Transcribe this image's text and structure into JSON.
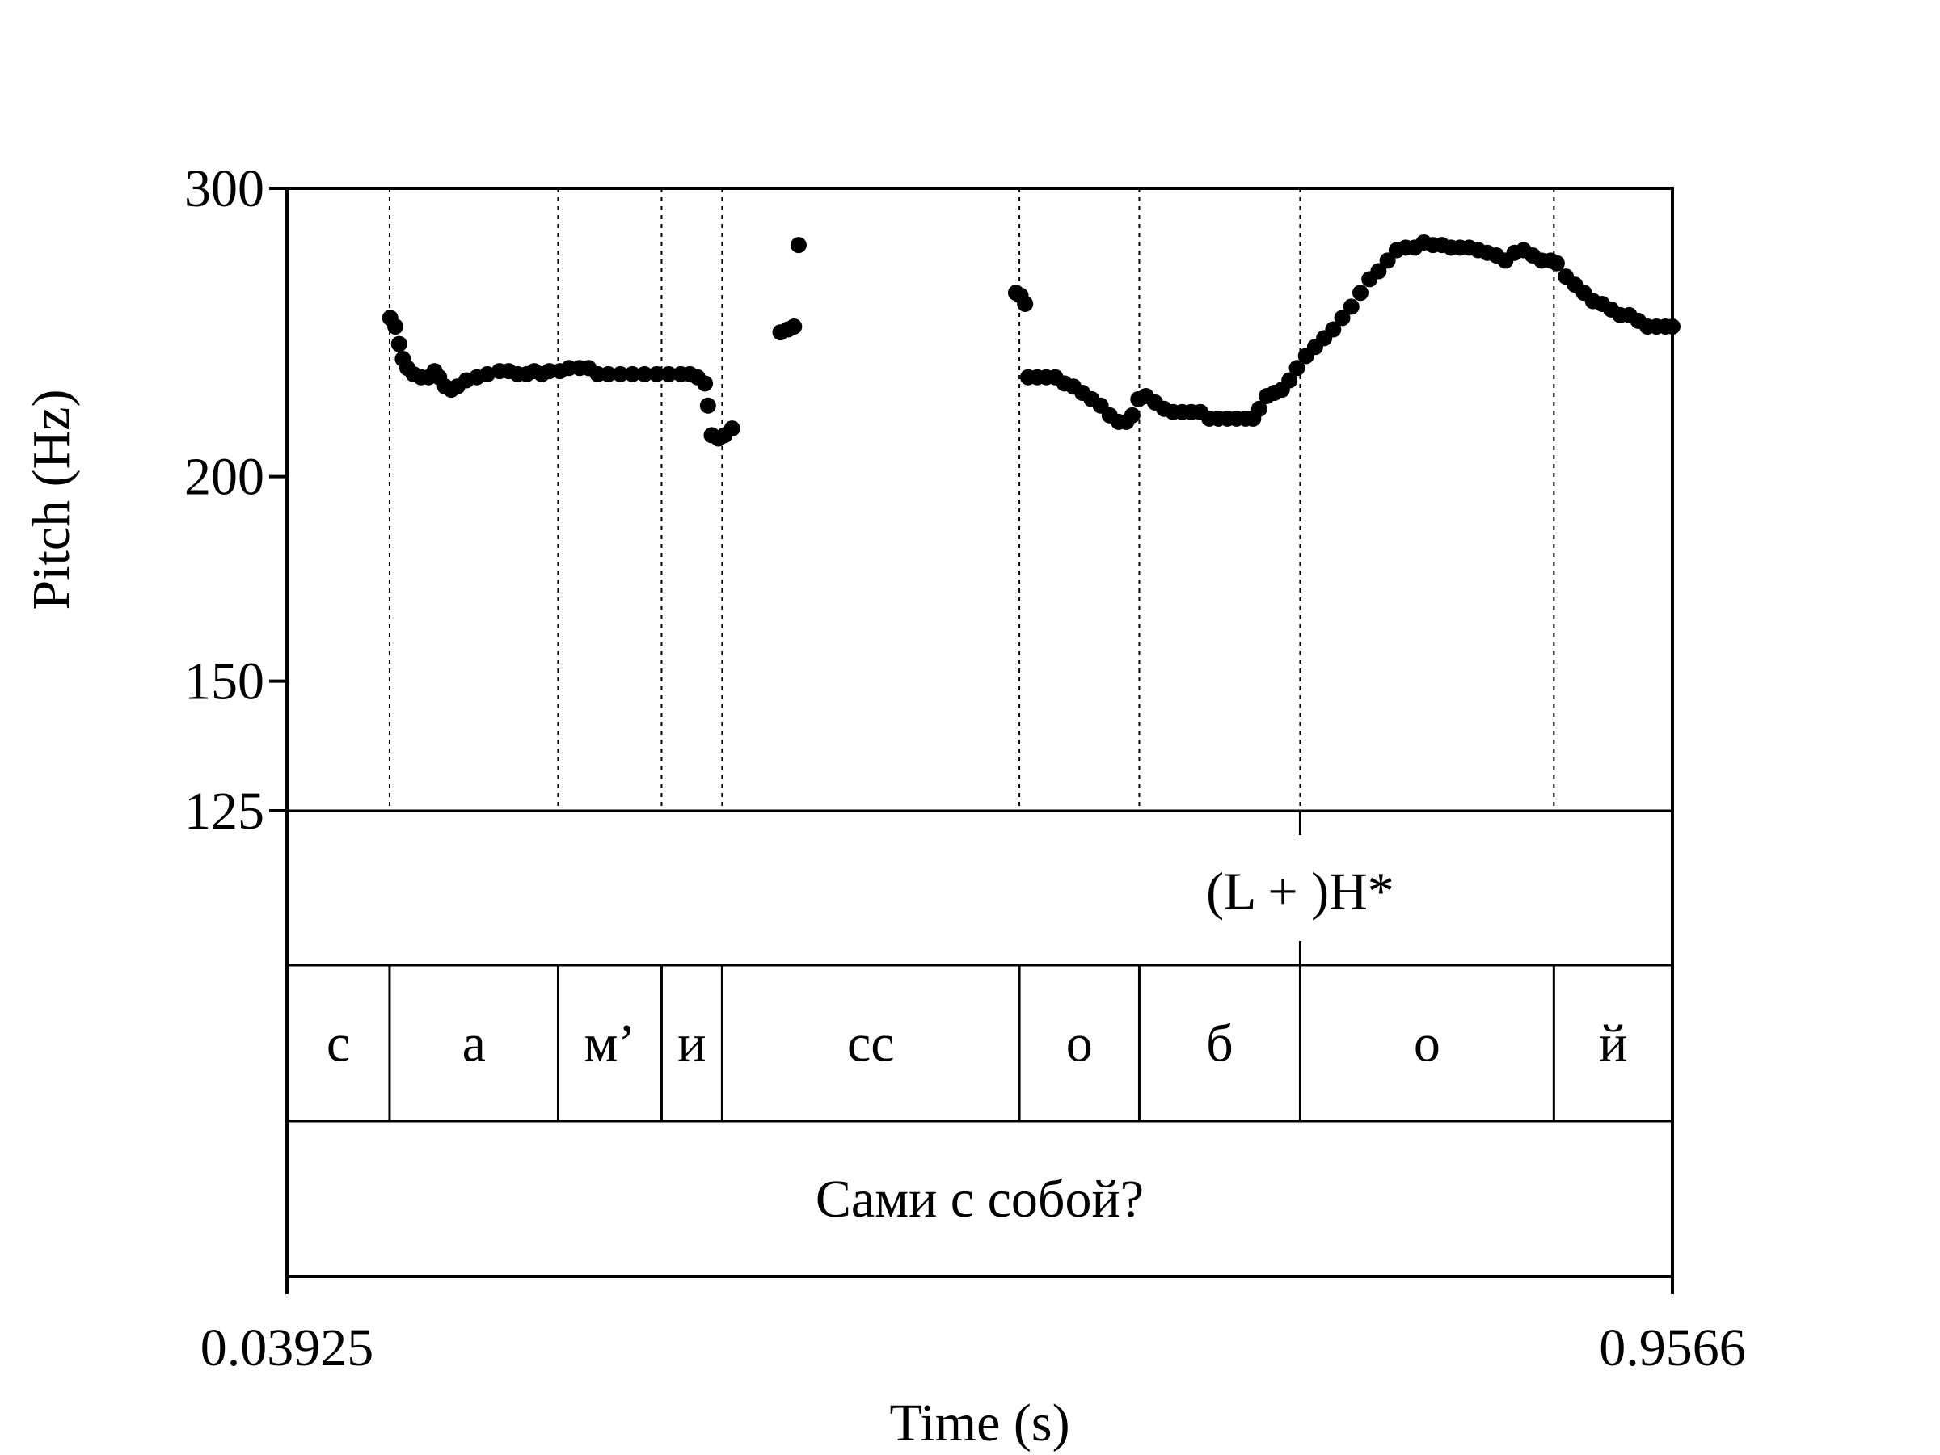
{
  "chart_data": {
    "type": "scatter",
    "ylabel": "Pitch (Hz)",
    "xlabel": "Time (s)",
    "xlim": [
      0.03925,
      0.9566
    ],
    "ylim": [
      125,
      300
    ],
    "y_scale": "log",
    "y_ticks": [
      "125",
      "150",
      "200",
      "300"
    ],
    "x_ticks": [
      "0.03925",
      "0.9566"
    ],
    "grid": false,
    "boundaries": [
      0.1072,
      0.2188,
      0.2873,
      0.3274,
      0.5242,
      0.6036,
      0.7101,
      0.8781
    ],
    "tiers": {
      "tone": {
        "marks": [
          {
            "time": 0.7101,
            "label": "(L + )H*"
          }
        ]
      },
      "segments": [
        {
          "start": 0.03925,
          "end": 0.1072,
          "label": "с"
        },
        {
          "start": 0.1072,
          "end": 0.2188,
          "label": "а"
        },
        {
          "start": 0.2188,
          "end": 0.2873,
          "label": "м’"
        },
        {
          "start": 0.2873,
          "end": 0.3274,
          "label": "и"
        },
        {
          "start": 0.3274,
          "end": 0.5242,
          "label": "сс"
        },
        {
          "start": 0.5242,
          "end": 0.6036,
          "label": "о"
        },
        {
          "start": 0.6036,
          "end": 0.7101,
          "label": "б"
        },
        {
          "start": 0.7101,
          "end": 0.8781,
          "label": "о"
        },
        {
          "start": 0.8781,
          "end": 0.9566,
          "label": "й"
        }
      ],
      "sentence": [
        {
          "start": 0.03925,
          "end": 0.9566,
          "label": "Сами с собой?"
        }
      ]
    },
    "series": [
      {
        "points": [
          [
            0.1076,
            250
          ],
          [
            0.111,
            247
          ],
          [
            0.1135,
            241
          ],
          [
            0.116,
            236
          ],
          [
            0.119,
            233
          ],
          [
            0.123,
            231
          ],
          [
            0.128,
            230
          ],
          [
            0.133,
            230
          ],
          [
            0.137,
            232
          ],
          [
            0.14,
            230
          ],
          [
            0.144,
            227
          ],
          [
            0.148,
            226
          ],
          [
            0.152,
            227
          ],
          [
            0.158,
            229
          ],
          [
            0.165,
            230
          ],
          [
            0.172,
            231
          ],
          [
            0.18,
            232
          ],
          [
            0.186,
            232
          ],
          [
            0.192,
            231
          ],
          [
            0.198,
            231
          ],
          [
            0.203,
            232
          ],
          [
            0.208,
            231
          ],
          [
            0.213,
            232
          ],
          [
            0.22,
            232
          ],
          [
            0.226,
            233
          ],
          [
            0.233,
            233
          ],
          [
            0.239,
            233
          ],
          [
            0.245,
            231
          ],
          [
            0.252,
            231
          ],
          [
            0.26,
            231
          ],
          [
            0.268,
            231
          ],
          [
            0.276,
            231
          ],
          [
            0.284,
            231
          ],
          [
            0.292,
            231
          ],
          [
            0.3,
            231
          ],
          [
            0.306,
            231
          ],
          [
            0.311,
            230
          ],
          [
            0.316,
            228
          ],
          [
            0.318,
            221
          ],
          [
            0.3205,
            212
          ],
          [
            0.325,
            211
          ],
          [
            0.329,
            212
          ],
          [
            0.334,
            214
          ],
          [
            0.366,
            245
          ],
          [
            0.371,
            246
          ],
          [
            0.375,
            247
          ],
          [
            0.378,
            277
          ],
          [
            0.522,
            259
          ],
          [
            0.525,
            258
          ],
          [
            0.528,
            255
          ],
          [
            0.53,
            230
          ],
          [
            0.536,
            230
          ],
          [
            0.542,
            230
          ],
          [
            0.548,
            230
          ],
          [
            0.554,
            228
          ],
          [
            0.56,
            227
          ],
          [
            0.566,
            225
          ],
          [
            0.572,
            223
          ],
          [
            0.578,
            221
          ],
          [
            0.584,
            218
          ],
          [
            0.59,
            216
          ],
          [
            0.595,
            216
          ],
          [
            0.599,
            218
          ],
          [
            0.603,
            223
          ],
          [
            0.608,
            224
          ],
          [
            0.614,
            222
          ],
          [
            0.62,
            220
          ],
          [
            0.626,
            219
          ],
          [
            0.632,
            219
          ],
          [
            0.638,
            219
          ],
          [
            0.644,
            219
          ],
          [
            0.65,
            217
          ],
          [
            0.656,
            217
          ],
          [
            0.662,
            217
          ],
          [
            0.668,
            217
          ],
          [
            0.674,
            217
          ],
          [
            0.679,
            217
          ],
          [
            0.683,
            220
          ],
          [
            0.688,
            224
          ],
          [
            0.693,
            225
          ],
          [
            0.698,
            226
          ],
          [
            0.703,
            229
          ],
          [
            0.708,
            233
          ],
          [
            0.714,
            237
          ],
          [
            0.72,
            240
          ],
          [
            0.726,
            243
          ],
          [
            0.732,
            246
          ],
          [
            0.738,
            250
          ],
          [
            0.744,
            254
          ],
          [
            0.75,
            259
          ],
          [
            0.756,
            264
          ],
          [
            0.762,
            267
          ],
          [
            0.768,
            271
          ],
          [
            0.774,
            275
          ],
          [
            0.78,
            276
          ],
          [
            0.786,
            276
          ],
          [
            0.792,
            278
          ],
          [
            0.798,
            277
          ],
          [
            0.804,
            277
          ],
          [
            0.81,
            276
          ],
          [
            0.816,
            276
          ],
          [
            0.822,
            276
          ],
          [
            0.828,
            275
          ],
          [
            0.834,
            274
          ],
          [
            0.84,
            273
          ],
          [
            0.846,
            271
          ],
          [
            0.852,
            274
          ],
          [
            0.858,
            275
          ],
          [
            0.864,
            273
          ],
          [
            0.87,
            271
          ],
          [
            0.876,
            271
          ],
          [
            0.88,
            270
          ],
          [
            0.886,
            265
          ],
          [
            0.892,
            262
          ],
          [
            0.898,
            259
          ],
          [
            0.904,
            256
          ],
          [
            0.91,
            255
          ],
          [
            0.916,
            253
          ],
          [
            0.922,
            251
          ],
          [
            0.928,
            251
          ],
          [
            0.934,
            249
          ],
          [
            0.94,
            247
          ],
          [
            0.946,
            247
          ],
          [
            0.952,
            247
          ],
          [
            0.9566,
            247
          ]
        ]
      }
    ]
  }
}
